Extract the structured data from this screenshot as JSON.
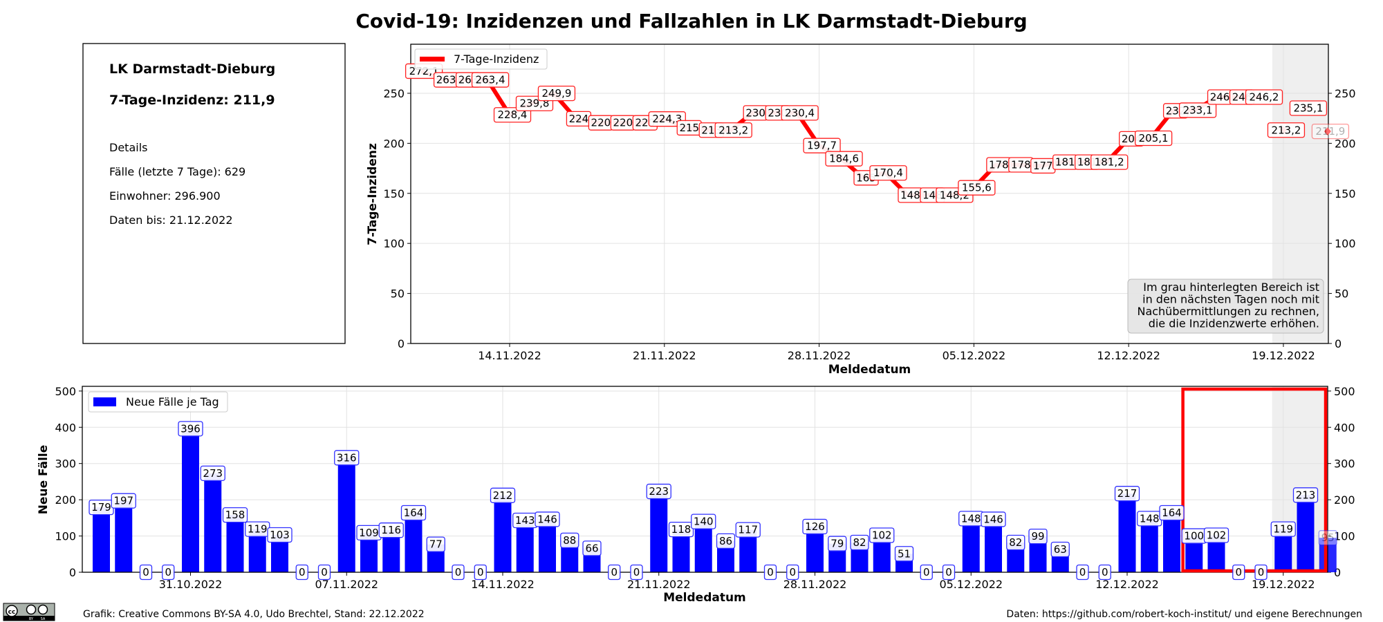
{
  "title": "Covid-19: Inzidenzen und Fallzahlen in LK Darmstadt-Dieburg",
  "info": {
    "region": "LK Darmstadt-Dieburg",
    "incidence": "7-Tage-Inzidenz: 211,9",
    "details_heading": "Details",
    "cases_7d": "Fälle (letzte 7 Tage): 629",
    "population": "Einwohner: 296.900",
    "data_until": "Daten bis: 21.12.2022"
  },
  "footer": {
    "license_logo": "cc BY SA",
    "credit": "Grafik: Creative Commons BY-SA 4.0, Udo Brechtel, Stand: 22.12.2022",
    "source": "Daten: https://github.com/robert-koch-institut/ und eigene Berechnungen"
  },
  "colors": {
    "line": "#ff0000",
    "bar": "#0000ff",
    "grey_region": "#efefef",
    "highlight_box": "#ff0000"
  },
  "chart_data": [
    {
      "type": "line",
      "x_start": "10.11.2022",
      "series": [
        {
          "name": "7-Tage-Inzidenz",
          "values": [
            272.1,
            263.4,
            263.4,
            263.4,
            228.4,
            239.8,
            249.9,
            224.5,
            220.5,
            220.5,
            220.5,
            224.3,
            215.5,
            213.2,
            213.2,
            230.4,
            230.4,
            230.4,
            197.7,
            184.6,
            165.5,
            170.4,
            148.2,
            148.2,
            148.2,
            155.6,
            178.5,
            178.5,
            177.5,
            181.2,
            181.2,
            181.2,
            204.5,
            205.1,
            232.5,
            233.1,
            246.2,
            246.2,
            246.2,
            213.2,
            235.1,
            211.9
          ],
          "labels": [
            "272,1",
            "263",
            "263",
            "263,4",
            "228,4",
            "239,8",
            "249,9",
            "224",
            "220",
            "220",
            "220",
            "224,3",
            "215",
            "213",
            "213,2",
            "230",
            "230",
            "230,4",
            "197,7",
            "184,6",
            "165",
            "170,4",
            "148",
            "148",
            "148,2",
            "155,6",
            "178",
            "178",
            "177",
            "181",
            "181",
            "181,2",
            "204",
            "205,1",
            "232",
            "233,1",
            "246",
            "246",
            "246,2",
            "213,2",
            "235,1",
            "211,9"
          ]
        }
      ],
      "xlabel": "Meldedatum",
      "ylabel": "7-Tage-Inzidenz",
      "xticks": [
        "14.11.2022",
        "21.11.2022",
        "28.11.2022",
        "05.12.2022",
        "12.12.2022",
        "19.12.2022"
      ],
      "yticks": [
        "0",
        "50",
        "100",
        "150",
        "200",
        "250"
      ],
      "ylim": [
        0,
        299
      ],
      "grid": true,
      "legend": "top-left",
      "grey_region_from": "18.12.2022",
      "annotation": [
        "Im grau hinterlegten Bereich ist",
        "in den nächsten Tagen noch mit",
        "Nachübermittlungen zu rechnen,",
        "die die Inzidenzwerte erhöhen."
      ]
    },
    {
      "type": "bar",
      "x_start": "27.10.2022",
      "series": [
        {
          "name": "Neue Fälle je Tag",
          "values": [
            179,
            197,
            0,
            0,
            396,
            273,
            158,
            119,
            103,
            0,
            0,
            316,
            109,
            116,
            164,
            77,
            0,
            0,
            212,
            143,
            146,
            88,
            66,
            0,
            0,
            223,
            118,
            140,
            86,
            117,
            0,
            0,
            126,
            79,
            82,
            102,
            51,
            0,
            0,
            148,
            146,
            82,
            99,
            63,
            0,
            0,
            217,
            148,
            164,
            100,
            102,
            0,
            0,
            119,
            213,
            95
          ],
          "labels": [
            "179",
            "197",
            "0",
            "0",
            "396",
            "273",
            "158",
            "119",
            "103",
            "0",
            "0",
            "316",
            "109",
            "116",
            "164",
            "77",
            "0",
            "0",
            "212",
            "143",
            "146",
            "88",
            "66",
            "0",
            "0",
            "223",
            "118",
            "140",
            "86",
            "117",
            "0",
            "0",
            "126",
            "79",
            "82",
            "102",
            "51",
            "0",
            "0",
            "148",
            "146",
            "82",
            "99",
            "63",
            "0",
            "0",
            "217",
            "148",
            "164",
            "100",
            "102",
            "0",
            "0",
            "119",
            "213",
            "95"
          ]
        }
      ],
      "xlabel": "Meldedatum",
      "ylabel": "Neue Fälle",
      "xticks": [
        "31.10.2022",
        "07.11.2022",
        "14.11.2022",
        "21.11.2022",
        "28.11.2022",
        "05.12.2022",
        "12.12.2022",
        "19.12.2022"
      ],
      "yticks": [
        "0",
        "100",
        "200",
        "300",
        "400",
        "500"
      ],
      "ylim": [
        0,
        513
      ],
      "grid": true,
      "legend": "top-left",
      "grey_region_from": "18.12.2022",
      "highlight_from": "14.12.2022"
    }
  ]
}
